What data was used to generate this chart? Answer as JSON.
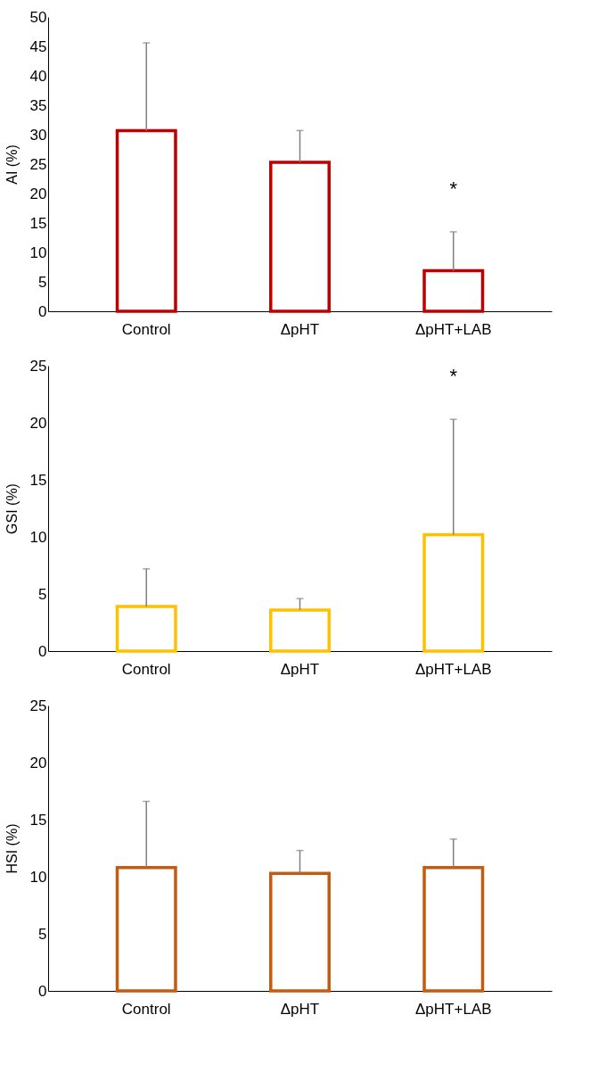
{
  "chart_data": [
    {
      "type": "bar",
      "ylabel": "AI (%)",
      "categories": [
        "Control",
        "ΔpHT",
        "ΔpHT+LAB"
      ],
      "ylim": [
        0,
        50
      ],
      "yticks": [
        0,
        5,
        10,
        15,
        20,
        25,
        30,
        35,
        40,
        45,
        50
      ],
      "grid": false,
      "series": [
        {
          "color": "#c00000",
          "values": [
            30.7,
            25.3,
            6.9
          ],
          "errors": [
            [
              30.7,
              45.6
            ],
            [
              25.3,
              30.7
            ],
            [
              6.9,
              13.5
            ]
          ]
        }
      ],
      "annotations": [
        "*"
      ]
    },
    {
      "type": "bar",
      "ylabel": "GSI (%)",
      "categories": [
        "Control",
        "ΔpHT",
        "ΔpHT+LAB"
      ],
      "ylim": [
        0,
        25
      ],
      "yticks": [
        0,
        5,
        10,
        15,
        20,
        25
      ],
      "grid": false,
      "series": [
        {
          "color": "#ffc000",
          "values": [
            3.9,
            3.6,
            10.2
          ],
          "errors": [
            [
              3.9,
              7.2
            ],
            [
              3.6,
              4.6
            ],
            [
              10.2,
              20.3
            ]
          ]
        }
      ],
      "annotations": [
        "*"
      ]
    },
    {
      "type": "bar",
      "ylabel": "HSI (%)",
      "categories": [
        "Control",
        "ΔpHT",
        "ΔpHT+LAB"
      ],
      "ylim": [
        0,
        25
      ],
      "yticks": [
        0,
        5,
        10,
        15,
        20,
        25
      ],
      "grid": false,
      "series": [
        {
          "color": "#c55a11",
          "values": [
            10.8,
            10.3,
            10.8
          ],
          "errors": [
            [
              10.8,
              16.6
            ],
            [
              10.3,
              12.3
            ],
            [
              10.8,
              13.3
            ]
          ]
        }
      ]
    }
  ]
}
